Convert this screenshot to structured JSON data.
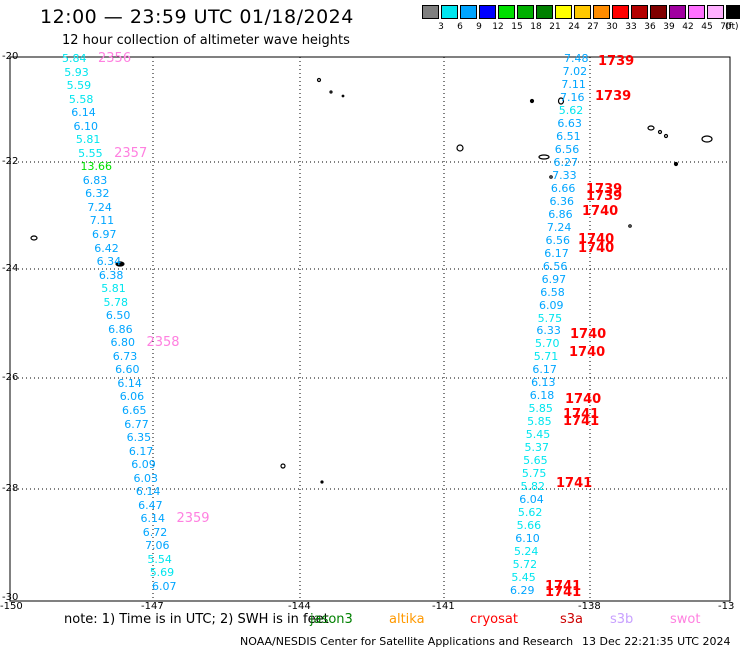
{
  "header": {
    "title": "12:00 — 23:59 UTC 01/18/2024",
    "subtitle": "12 hour collection of altimeter wave heights"
  },
  "colorbar": {
    "colors": [
      "#7f7f7f",
      "#00e5ee",
      "#00a5ff",
      "#0000ff",
      "#00e000",
      "#00b000",
      "#008000",
      "#ffff00",
      "#ffc800",
      "#ff8c00",
      "#ff0000",
      "#b40000",
      "#800000",
      "#a000a0",
      "#ff70ff",
      "#ffb0ff",
      "#000000"
    ],
    "labels": [
      "3",
      "6",
      "9",
      "12",
      "15",
      "18",
      "21",
      "24",
      "27",
      "30",
      "33",
      "36",
      "39",
      "42",
      "45",
      "70"
    ],
    "unit": "(ft)"
  },
  "axes": {
    "y_labels": [
      "-20",
      "-22",
      "-24",
      "-26",
      "-28",
      "-30"
    ],
    "x_labels": [
      "-150",
      "-147",
      "-144",
      "-141",
      "-138",
      "-13"
    ]
  },
  "track_left": {
    "values": [
      "5.84",
      "5.93",
      "5.59",
      "5.58",
      "6.14",
      "6.10",
      "5.81",
      "5.55",
      "13.66",
      "6.83",
      "6.32",
      "7.24",
      "7.11",
      "6.97",
      "6.42",
      "6.34",
      "6.38",
      "5.81",
      "5.78",
      "6.50",
      "6.86",
      "6.80",
      "6.73",
      "6.60",
      "6.14",
      "6.06",
      "6.65",
      "6.77",
      "6.35",
      "6.17",
      "6.09",
      "6.03",
      "6.14",
      "6.47",
      "6.14",
      "6.72",
      "7.06",
      "5.54",
      "5.69",
      "6.07"
    ],
    "times": [
      "2356",
      "2357",
      "2358",
      "2359"
    ]
  },
  "track_right": {
    "values": [
      "7.48",
      "7.02",
      "7.11",
      "7.16",
      "5.62",
      "6.63",
      "6.51",
      "6.56",
      "6.27",
      "7.33",
      "6.66",
      "6.36",
      "6.86",
      "7.24",
      "6.56",
      "6.17",
      "6.56",
      "6.97",
      "6.58",
      "6.09",
      "5.75",
      "6.33",
      "5.70",
      "5.71",
      "6.17",
      "6.13",
      "6.18",
      "5.85",
      "5.85",
      "5.45",
      "5.37",
      "5.65",
      "5.75",
      "5.82",
      "6.04",
      "5.62",
      "5.66",
      "6.10",
      "5.24",
      "5.72",
      "5.45",
      "6.29"
    ],
    "times": [
      "1739",
      "1739",
      "1739",
      "1739",
      "1740",
      "1740",
      "1740",
      "1740",
      "1740",
      "1740",
      "1741",
      "1741",
      "1741",
      "1741",
      "1741"
    ]
  },
  "notes": {
    "text": "note:  1) Time is in UTC; 2) SWH is in feet",
    "satellites": [
      {
        "name": "jason3",
        "color": "#008000"
      },
      {
        "name": "altika",
        "color": "#ff9900"
      },
      {
        "name": "cryosat",
        "color": "#ff0000"
      },
      {
        "name": "s3a",
        "color": "#cc0000"
      },
      {
        "name": "s3b",
        "color": "#c8a0ff"
      },
      {
        "name": "swot",
        "color": "#ff80e0"
      }
    ]
  },
  "footer": {
    "left": "NOAA/NESDIS Center for Satellite Applications and Research",
    "right": "13 Dec 22:21:35 UTC 2024"
  }
}
